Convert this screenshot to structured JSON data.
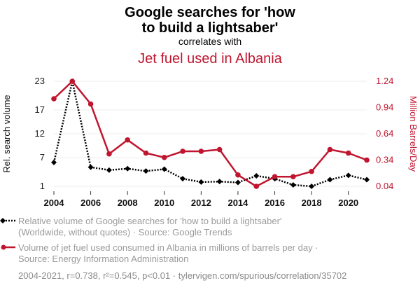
{
  "header": {
    "title_line1": "Google searches for 'how",
    "title_line2": "to build a lightsaber'",
    "correlates": "correlates with",
    "title2": "Jet fuel used in Albania"
  },
  "colors": {
    "series1": "#000000",
    "series2": "#c0152f",
    "grid": "#eeeeee"
  },
  "legend": {
    "s1_line1": "Relative volume of Google searches for 'how to build a lightsaber'",
    "s1_line2": "(Worldwide, without quotes) · Source: Google Trends",
    "s2_line1": "Volume of jet fuel used consumed in Albania in millions of barrels per day ·",
    "s2_line2": "Source: Energy Information Administration"
  },
  "footer": "2004-2021, r=0.738, r²=0.545, p<0.01 · tylervigen.com/spurious/correlation/35702",
  "chart_data": {
    "type": "line",
    "x": [
      2004,
      2005,
      2006,
      2007,
      2008,
      2009,
      2010,
      2011,
      2012,
      2013,
      2014,
      2015,
      2016,
      2017,
      2018,
      2019,
      2020,
      2021
    ],
    "x_ticks": [
      "2004",
      "2006",
      "2008",
      "2010",
      "2012",
      "2014",
      "2016",
      "2018",
      "2020"
    ],
    "ylabel": "Rel. search volume",
    "y2label": "Million Barrels/Day",
    "y_ticks": [
      "1",
      "7",
      "12",
      "17",
      "23"
    ],
    "y2_ticks": [
      "0.04",
      "0.34",
      "0.64",
      "0.94",
      "1.24"
    ],
    "ylim": [
      1,
      23
    ],
    "y2lim": [
      0.04,
      1.24
    ],
    "grid": true,
    "series": [
      {
        "axis": "left",
        "style": "dotted-diamond",
        "values": [
          6,
          23,
          5,
          4.4,
          4.7,
          4.2,
          4.6,
          2.6,
          1.9,
          2.0,
          1.8,
          3.2,
          2.6,
          1.3,
          1.0,
          2.4,
          3.3,
          2.4
        ]
      },
      {
        "axis": "right",
        "style": "solid-circle",
        "values": [
          1.04,
          1.24,
          0.98,
          0.41,
          0.57,
          0.42,
          0.37,
          0.44,
          0.44,
          0.46,
          0.17,
          0.04,
          0.15,
          0.15,
          0.21,
          0.46,
          0.42,
          0.34
        ]
      }
    ]
  }
}
